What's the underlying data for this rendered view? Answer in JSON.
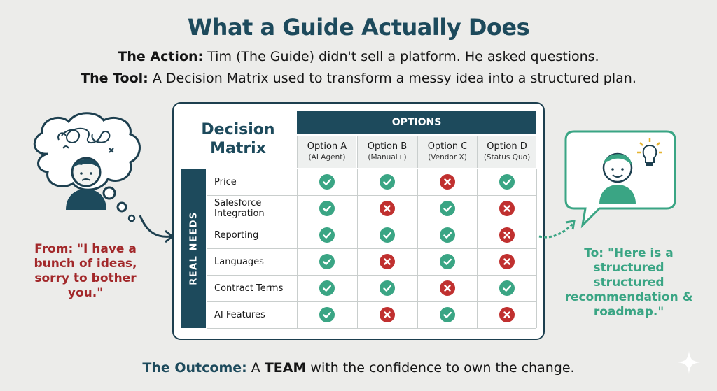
{
  "title": "What a Guide Actually Does",
  "action": {
    "label": "The Action:",
    "text": " Tim (The Guide) didn't sell a platform. He asked questions."
  },
  "tool": {
    "label": "The Tool:",
    "text": " A Decision Matrix used to transform a messy idea into a structured plan."
  },
  "matrix": {
    "title_line1": "Decision",
    "title_line2": "Matrix",
    "options_header": "OPTIONS",
    "needs_header": "REAL NEEDS",
    "options": [
      {
        "name": "Option A",
        "sub": "(AI Agent)"
      },
      {
        "name": "Option B",
        "sub": "(Manual+)"
      },
      {
        "name": "Option C",
        "sub": "(Vendor X)"
      },
      {
        "name": "Option D",
        "sub": "(Status Quo)"
      }
    ],
    "rows": [
      {
        "label": "Price",
        "values": [
          "check",
          "check",
          "cross",
          "check"
        ]
      },
      {
        "label": "Salesforce Integration",
        "values": [
          "check",
          "cross",
          "check",
          "cross"
        ]
      },
      {
        "label": "Reporting",
        "values": [
          "check",
          "check",
          "check",
          "cross"
        ]
      },
      {
        "label": "Languages",
        "values": [
          "check",
          "cross",
          "check",
          "cross"
        ]
      },
      {
        "label": "Contract Terms",
        "values": [
          "check",
          "check",
          "cross",
          "check"
        ]
      },
      {
        "label": "AI Features",
        "values": [
          "check",
          "cross",
          "check",
          "cross"
        ]
      }
    ],
    "colors": {
      "check": "#3aa584",
      "cross": "#c0302f",
      "header": "#1d4a5c"
    }
  },
  "from_text": "From: \"I have a bunch of ideas, sorry to bother you.\"",
  "to_text": "To: \"Here is a structured structured recommendation & roadmap.\"",
  "outcome": {
    "label": "The Outcome:",
    "pre": " A ",
    "team": "TEAM",
    "post": " with the confidence to own the change."
  },
  "icons": [
    "confused-person-icon",
    "thought-bubble-icon",
    "arrow-right-icon",
    "happy-person-icon",
    "speech-bubble-icon",
    "lightbulb-icon",
    "sparkle-icon"
  ]
}
